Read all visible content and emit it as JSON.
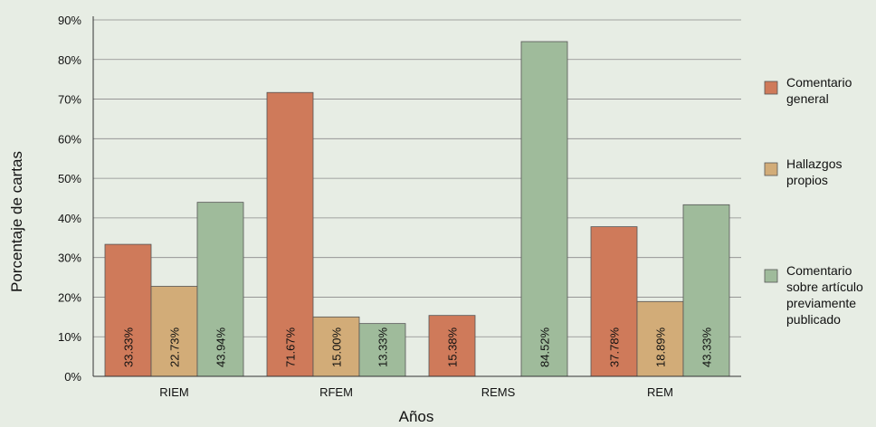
{
  "chart_data": {
    "type": "bar",
    "xlabel": "Años",
    "ylabel": "Porcentaje de cartas",
    "ylim": [
      0,
      90
    ],
    "yticks": [
      "0%",
      "10%",
      "20%",
      "30%",
      "40%",
      "50%",
      "60%",
      "70%",
      "80%",
      "90%"
    ],
    "categories": [
      "RIEM",
      "RFEM",
      "REMS",
      "REM"
    ],
    "grid": true,
    "legend_position": "right",
    "series": [
      {
        "name": "Comentario general",
        "legend_lines": [
          "Comentario",
          "general"
        ],
        "color": "#cf7a5a",
        "values": [
          33.33,
          71.67,
          15.38,
          37.78
        ],
        "labels": [
          "33.33%",
          "71.67%",
          "15.38%",
          "37.78%"
        ]
      },
      {
        "name": "Hallazgos propios",
        "legend_lines": [
          "Hallazgos",
          "propios"
        ],
        "color": "#d2ac78",
        "values": [
          22.73,
          15.0,
          0,
          18.89
        ],
        "labels": [
          "22.73%",
          "15.00%",
          "",
          "18.89%"
        ]
      },
      {
        "name": "Comentario sobre artículo previamente publicado",
        "legend_lines": [
          "Comentario",
          "sobre artículo",
          "previamente",
          "publicado"
        ],
        "color": "#9fbb9b",
        "values": [
          43.94,
          13.33,
          84.52,
          43.33
        ],
        "labels": [
          "43.94%",
          "13.33%",
          "84.52%",
          "43.33%"
        ]
      }
    ]
  }
}
